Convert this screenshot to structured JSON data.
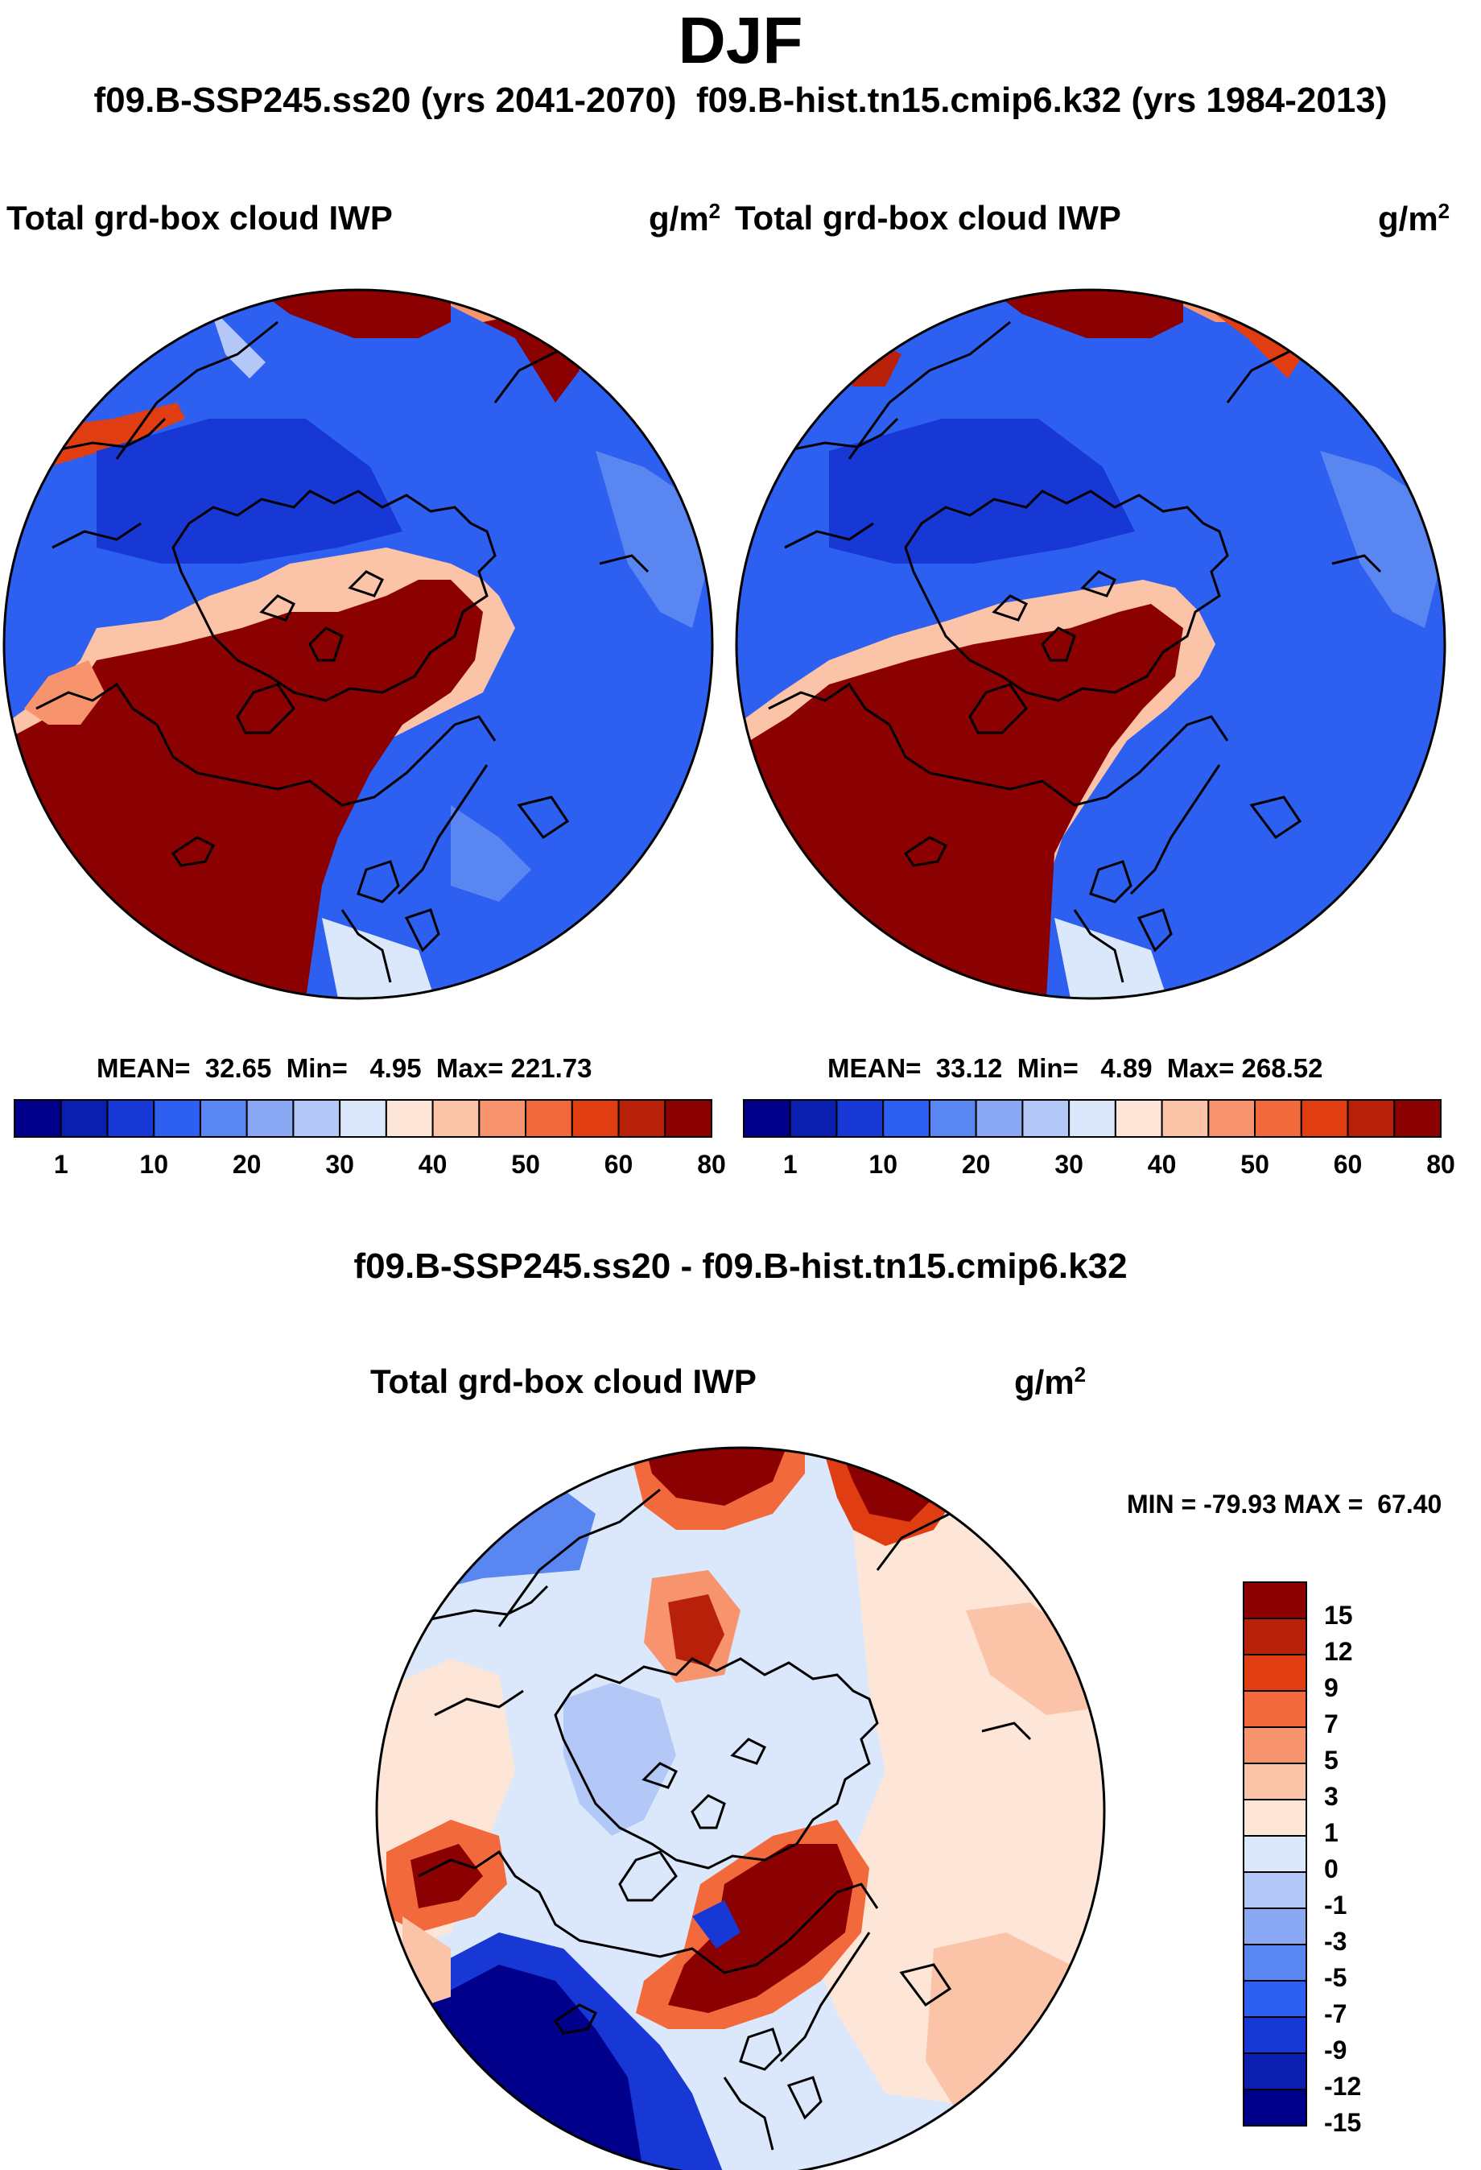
{
  "season": "DJF",
  "header": {
    "case1": "f09.B-SSP245.ss20 (yrs 2041-2070)",
    "case2": "f09.B-hist.tn15.cmip6.k32 (yrs 1984-2013)"
  },
  "diff_title": "f09.B-SSP245.ss20 - f09.B-hist.tn15.cmip6.k32",
  "colors": {
    "land_outline": "#000000",
    "deep_blue": "#1f4fd8",
    "dark_red": "#8b0000"
  },
  "chart_data": [
    {
      "type": "heatmap",
      "projection": "north-polar-stereographic",
      "title": "Total grd-box cloud IWP",
      "units": "g/m",
      "units_sup": "2",
      "stats": {
        "mean_label": "MEAN=",
        "mean": "32.65",
        "min_label": "Min=",
        "min": "4.95",
        "max_label": "Max=",
        "max": "221.73"
      },
      "colorbar": {
        "orientation": "horizontal",
        "colors": [
          "#00008b",
          "#0a1fb0",
          "#1838d6",
          "#2d5ff0",
          "#5a86f2",
          "#8aa8f4",
          "#b3c8f7",
          "#dbe8fb",
          "#fde6d8",
          "#fbc3a8",
          "#f7946e",
          "#f2693c",
          "#e03d12",
          "#b8200a",
          "#8b0000"
        ],
        "tick_labels": [
          "1",
          "10",
          "20",
          "30",
          "40",
          "50",
          "60",
          "80"
        ]
      }
    },
    {
      "type": "heatmap",
      "projection": "north-polar-stereographic",
      "title": "Total grd-box cloud IWP",
      "units": "g/m",
      "units_sup": "2",
      "stats": {
        "mean_label": "MEAN=",
        "mean": "33.12",
        "min_label": "Min=",
        "min": "4.89",
        "max_label": "Max=",
        "max": "268.52"
      },
      "colorbar": {
        "orientation": "horizontal",
        "colors": [
          "#00008b",
          "#0a1fb0",
          "#1838d6",
          "#2d5ff0",
          "#5a86f2",
          "#8aa8f4",
          "#b3c8f7",
          "#dbe8fb",
          "#fde6d8",
          "#fbc3a8",
          "#f7946e",
          "#f2693c",
          "#e03d12",
          "#b8200a",
          "#8b0000"
        ],
        "tick_labels": [
          "1",
          "10",
          "20",
          "30",
          "40",
          "50",
          "60",
          "80"
        ]
      }
    },
    {
      "type": "heatmap",
      "projection": "north-polar-stereographic",
      "title": "Total grd-box cloud IWP",
      "units": "g/m",
      "units_sup": "2",
      "minmax": "MIN = -79.93 MAX =  67.40",
      "colorbar": {
        "orientation": "vertical",
        "colors": [
          "#8b0000",
          "#b8200a",
          "#e03d12",
          "#f2693c",
          "#f7946e",
          "#fbc3a8",
          "#fde6d8",
          "#dbe8fb",
          "#b3c8f7",
          "#8aa8f4",
          "#5a86f2",
          "#2d5ff0",
          "#1838d6",
          "#0a1fb0",
          "#00008b"
        ],
        "tick_labels": [
          "15",
          "12",
          "9",
          "7",
          "5",
          "3",
          "1",
          "0",
          "-1",
          "-3",
          "-5",
          "-7",
          "-9",
          "-12",
          "-15"
        ]
      }
    }
  ]
}
